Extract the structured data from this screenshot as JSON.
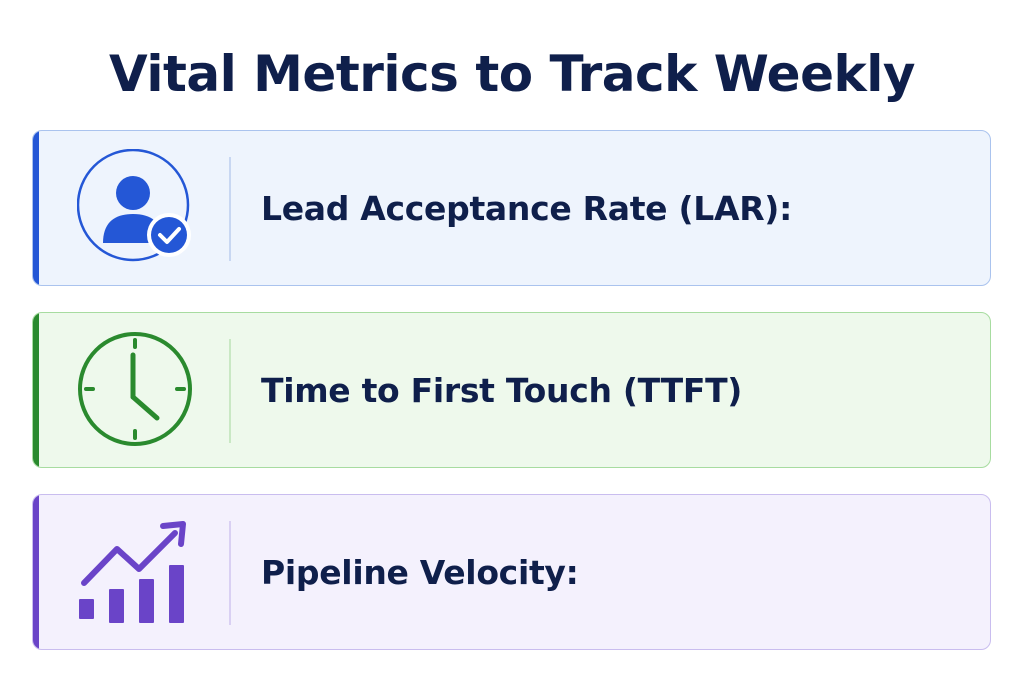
{
  "title": "Vital Metrics to Track Weekly",
  "cards": [
    {
      "label": "Lead Acceptance Rate (LAR):",
      "icon": "user-check-icon",
      "accent_color": "#2457d6",
      "background_color": "#eef4fd",
      "border_color": "#aac3ee",
      "divider_color": "#c8d7f2"
    },
    {
      "label": "Time to First Touch (TTFT)",
      "icon": "clock-icon",
      "accent_color": "#2a8a2e",
      "background_color": "#eef9ec",
      "border_color": "#a7dca0",
      "divider_color": "#c9e8c4"
    },
    {
      "label": "Pipeline Velocity:",
      "icon": "growth-chart-icon",
      "accent_color": "#6a44c8",
      "background_color": "#f4f1fd",
      "border_color": "#c9bdef",
      "divider_color": "#d9d0f3"
    }
  ]
}
